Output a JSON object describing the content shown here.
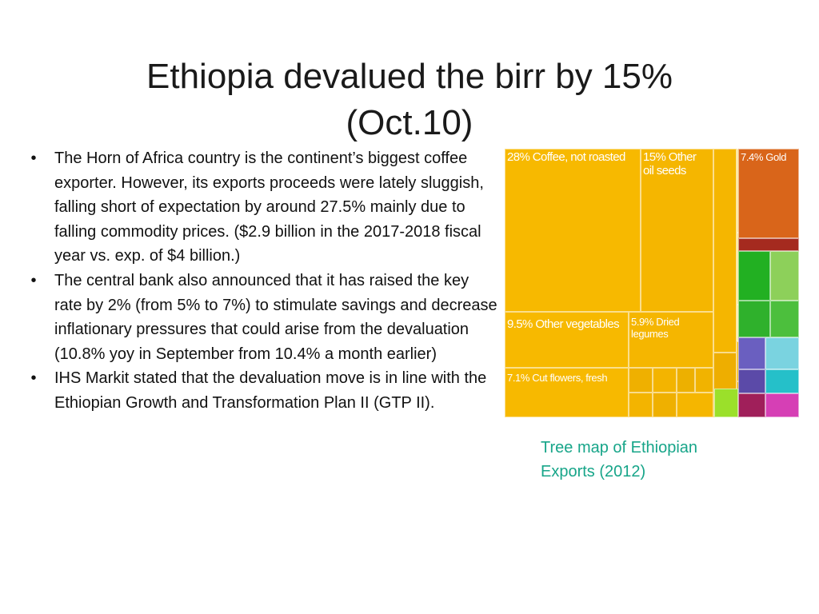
{
  "title": {
    "line1": "Ethiopia devalued the birr by 15%",
    "line2": "(Oct.10)"
  },
  "bullets": [
    "The Horn of Africa country is the continent’s biggest coffee exporter. However, its exports proceeds were lately sluggish, falling short of expectation by around 27.5% mainly due to falling commodity prices. ($2.9 billion in the 2017-2018 fiscal year vs. exp. of $4 billion.)",
    "The central bank also announced that it has raised the key rate by 2% (from 5% to 7%) to stimulate savings and decrease inflationary pressures that could arise from the devaluation (10.8% yoy in September from 10.4% a month earlier)",
    "IHS Markit stated that the devaluation move is in line with the Ethiopian Growth and Transformation Plan II (GTP II)."
  ],
  "bullet_symbol": "•",
  "treemap": {
    "labels": {
      "coffee": "28% Coffee, not roasted",
      "oil_seeds": "15% Other\noil seeds",
      "gold": "7.4% Gold",
      "vegetables": "9.5% Other vegetables",
      "legumes": "5.9% Dried\nlegumes",
      "flowers": "7.1% Cut flowers, fresh"
    },
    "colors": {
      "agriculture": "#f5b800",
      "agriculture_dark": "#e8a900",
      "pale": "#fde98a",
      "gold": "#d9651a",
      "minerals": "#a52a1f",
      "animals": "#2fb12c",
      "textiles": "#25c0c9",
      "machinery": "#5b4aa8",
      "chemicals": "#d63fb5"
    }
  },
  "caption": {
    "line1": "Tree map of Ethiopian",
    "line2": "Exports (2012)"
  }
}
